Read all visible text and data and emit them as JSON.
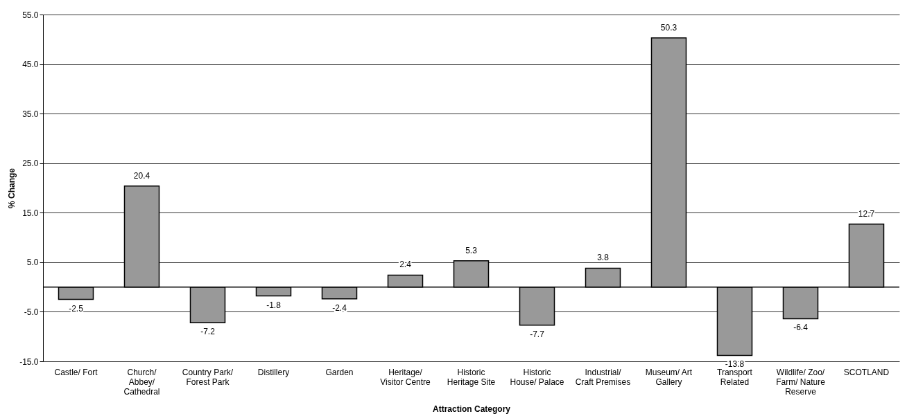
{
  "chart_data": {
    "type": "bar",
    "xlabel": "Attraction Category",
    "ylabel": "% Change",
    "categories": [
      "Castle/ Fort",
      "Church/\nAbbey/\nCathedral",
      "Country Park/\nForest Park",
      "Distillery",
      "Garden",
      "Heritage/\nVisitor Centre",
      "Historic\nHeritage Site",
      "Historic\nHouse/ Palace",
      "Industrial/\nCraft Premises",
      "Museum/ Art\nGallery",
      "Transport\nRelated",
      "Wildlife/ Zoo/\nFarm/ Nature\nReserve",
      "SCOTLAND"
    ],
    "values": [
      -2.5,
      20.4,
      -7.2,
      -1.8,
      -2.4,
      2.4,
      5.3,
      -7.7,
      3.8,
      50.3,
      -13.8,
      -6.4,
      12.7
    ],
    "color": "#999999",
    "ylim": [
      -15.0,
      55.0
    ],
    "yticks": [
      {
        "value": -15,
        "label": "-15.0"
      },
      {
        "value": -5,
        "label": "-5.0"
      },
      {
        "value": 5,
        "label": "5.0"
      },
      {
        "value": 15,
        "label": "15.0"
      },
      {
        "value": 25,
        "label": "25.0"
      },
      {
        "value": 35,
        "label": "35.0"
      },
      {
        "value": 45,
        "label": "45.0"
      },
      {
        "value": 55,
        "label": "55.0"
      }
    ],
    "grid": "y",
    "data_labels": true
  }
}
